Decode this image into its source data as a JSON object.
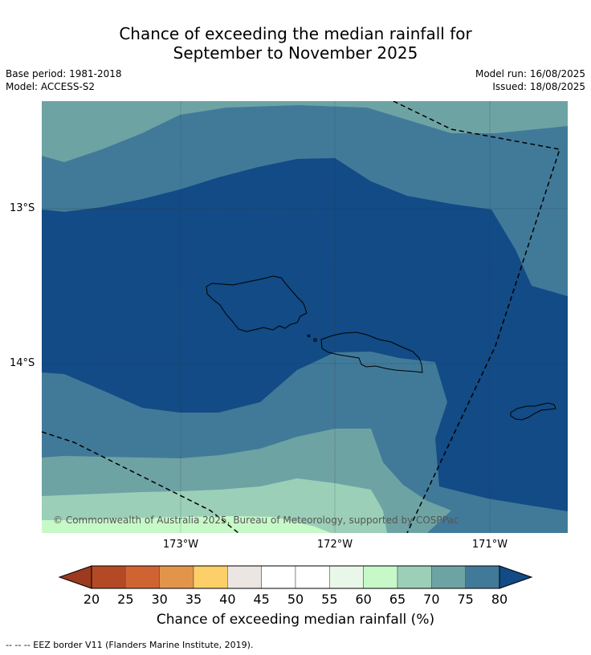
{
  "title_line1": "Chance of exceeding the median rainfall for",
  "title_line2": "September to November 2025",
  "base_period": "Base period: 1981-2018",
  "model": "Model: ACCESS-S2",
  "model_run": "Model run: 16/08/2025",
  "issued": "Issued: 18/08/2025",
  "lat_labels": [
    "13°S",
    "14°S"
  ],
  "lon_labels": [
    "173°W",
    "172°W",
    "171°W"
  ],
  "copyright": "© Commonwealth of Australia 2025, Bureau of Meteorology, supported by COSPPac",
  "colorbar": {
    "label": "Chance of exceeding median rainfall (%)",
    "ticks": [
      "20",
      "25",
      "30",
      "35",
      "40",
      "45",
      "50",
      "55",
      "60",
      "65",
      "70",
      "75",
      "80"
    ],
    "colors": [
      "#b34a25",
      "#cf6432",
      "#e2954a",
      "#fdcf68",
      "#ece6e2",
      "#ffffff",
      "#ffffff",
      "#e9f7e8",
      "#c7f9c8",
      "#9ccfb8",
      "#6ea3a4",
      "#417a99"
    ],
    "low_color": "#9c3a1f",
    "high_color": "#124b85"
  },
  "zone_colors": {
    "c80": "#124b85",
    "c75": "#417a99",
    "c70": "#6ea3a4",
    "c65": "#9ccfb8",
    "c60": "#c7f9c8"
  },
  "footer": "--  --  -- EEZ border V11 (Flanders Marine Institute, 2019)."
}
